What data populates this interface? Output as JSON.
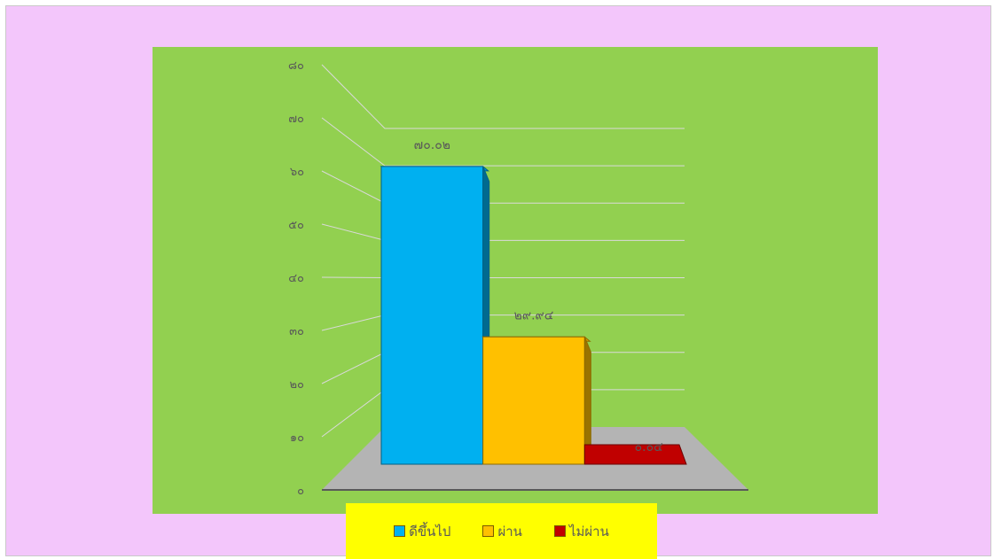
{
  "chart_data": {
    "type": "bar",
    "style": "3d-clustered-column",
    "categories": [
      "ดีขึ้นไป",
      "ผ่าน",
      "ไม่ผ่าน"
    ],
    "values": [
      70.02,
      29.94,
      0.04
    ],
    "value_labels": [
      "๗๐.๐๒",
      "๒๙.๙๔",
      "๐.๐๔"
    ],
    "colors": [
      "#00b0f0",
      "#ffc000",
      "#c00000"
    ],
    "ylim": [
      0,
      80
    ],
    "yticks": [
      0,
      10,
      20,
      30,
      40,
      50,
      60,
      70,
      80
    ],
    "ytick_labels": [
      "๐",
      "๑๐",
      "๒๐",
      "๓๐",
      "๔๐",
      "๕๐",
      "๖๐",
      "๗๐",
      "๘๐"
    ],
    "title": "",
    "xlabel": "",
    "ylabel": "",
    "grid": true,
    "legend_position": "bottom"
  },
  "legend": {
    "items": [
      {
        "label": "ดีขึ้นไป",
        "color": "#00b0f0"
      },
      {
        "label": "ผ่าน",
        "color": "#ffc000"
      },
      {
        "label": "ไม่ผ่าน",
        "color": "#c00000"
      }
    ]
  },
  "colors": {
    "frame_background": "#f3c6fb",
    "plot_background": "#92d050",
    "floor": "#b4b4b4",
    "gridline": "#d9d9d9",
    "legend_background": "#ffff00"
  }
}
